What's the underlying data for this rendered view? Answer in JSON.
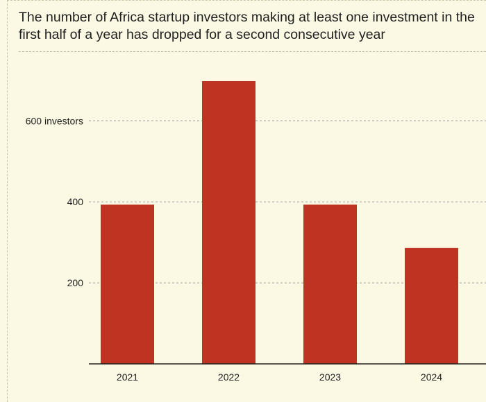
{
  "title": "The number of Africa startup investors making at least one investment in the first half of a year has dropped for a second consecutive year",
  "colors": {
    "background": "#fbf8e3",
    "bar": "#bf3322",
    "grid": "#9a9a9a",
    "text": "#1f1f1f"
  },
  "chart_data": {
    "type": "bar",
    "categories": [
      "2021",
      "2022",
      "2023",
      "2024"
    ],
    "values": [
      393,
      698,
      393,
      286
    ],
    "ylim": [
      0,
      698
    ],
    "yticks": [
      {
        "value": 200,
        "label": "200"
      },
      {
        "value": 400,
        "label": "400"
      },
      {
        "value": 600,
        "label": "600 investors"
      }
    ],
    "grid": true
  }
}
